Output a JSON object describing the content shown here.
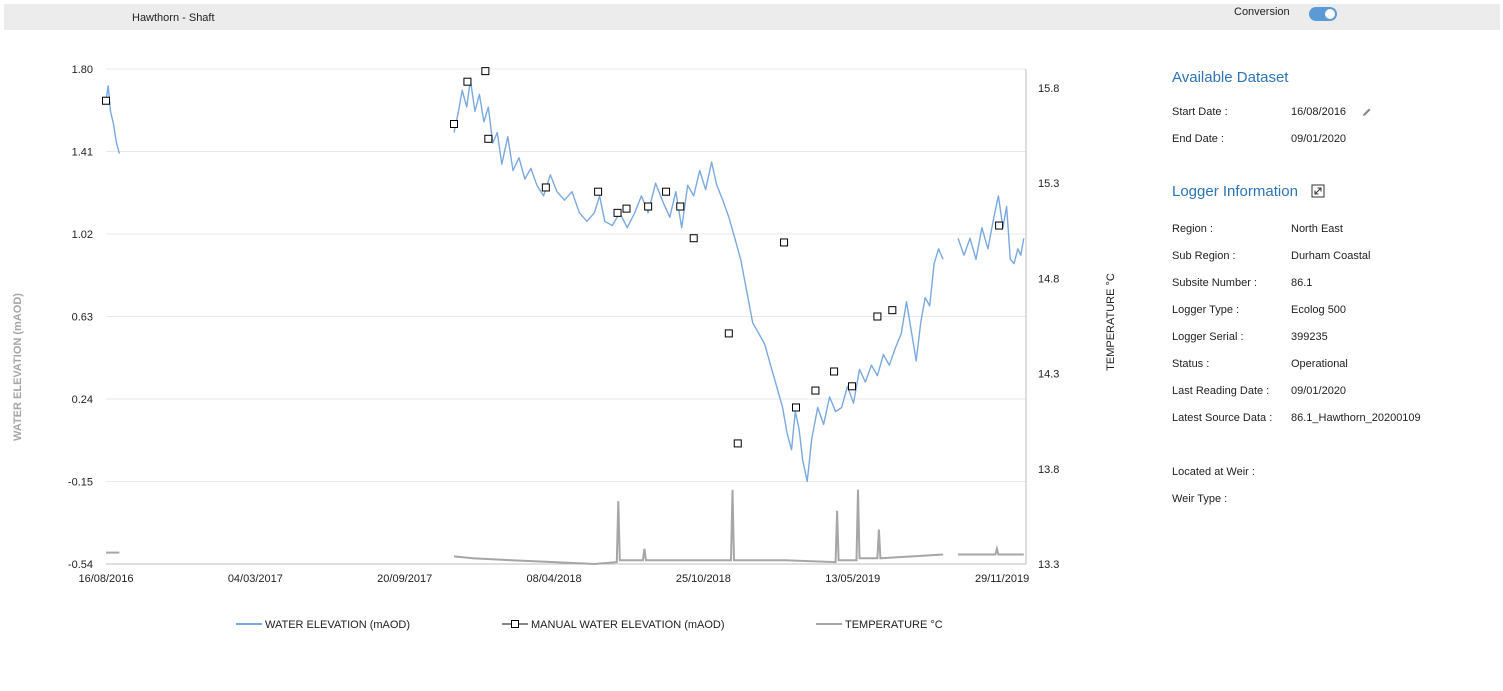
{
  "header": {
    "title": "Hawthorn - Shaft",
    "conversion_label": "Conversion",
    "conversion_on": true
  },
  "panel": {
    "dataset_title": "Available Dataset",
    "dataset_fields": [
      {
        "label": "Start Date :",
        "value": "16/08/2016"
      },
      {
        "label": "End Date :",
        "value": "09/01/2020"
      }
    ],
    "logger_title": "Logger Information",
    "logger_fields": [
      {
        "label": "Region :",
        "value": "North East"
      },
      {
        "label": "Sub Region :",
        "value": "Durham Coastal"
      },
      {
        "label": "Subsite Number :",
        "value": "86.1"
      },
      {
        "label": "Logger Type :",
        "value": "Ecolog 500"
      },
      {
        "label": "Logger Serial :",
        "value": "399235"
      },
      {
        "label": "Status :",
        "value": "Operational"
      },
      {
        "label": "Last Reading Date :",
        "value": "09/01/2020"
      },
      {
        "label": "Latest Source Data :",
        "value": "86.1_Hawthorn_20200109"
      }
    ],
    "weir_fields": [
      {
        "label": "Located at Weir :",
        "value": ""
      },
      {
        "label": "Weir Type :",
        "value": ""
      }
    ],
    "icons": {
      "edit": "pencil-icon",
      "expand": "expand-icon"
    }
  },
  "chart_data": {
    "type": "line",
    "ylabel": "WATER ELEVATION (mAOD)",
    "y2label": "TEMPERATURE °C",
    "x_range": [
      "2016-08-16",
      "2019-12-31"
    ],
    "ylim": [
      -0.54,
      1.8
    ],
    "y2lim": [
      13.3,
      15.9
    ],
    "y_ticks": [
      "1.80",
      "1.41",
      "1.02",
      "0.63",
      "0.24",
      "-0.15",
      "-0.54"
    ],
    "y2_ticks": [
      "15.8",
      "15.3",
      "14.8",
      "14.3",
      "13.8",
      "13.3"
    ],
    "x_ticks": [
      {
        "date": "2016-08-16",
        "label": "16/08/2016"
      },
      {
        "date": "2017-03-04",
        "label": "04/03/2017"
      },
      {
        "date": "2017-09-20",
        "label": "20/09/2017"
      },
      {
        "date": "2018-04-08",
        "label": "08/04/2018"
      },
      {
        "date": "2018-10-25",
        "label": "25/10/2018"
      },
      {
        "date": "2019-05-13",
        "label": "13/05/2019"
      },
      {
        "date": "2019-11-29",
        "label": "29/11/2019"
      }
    ],
    "grid": true,
    "legend": "bottom",
    "colors": {
      "water": "#7aa9e0",
      "manual": "#000000",
      "temp": "#a6a6a6",
      "axis": "#bfbfbf",
      "grid": "#e8e8e8"
    },
    "series": [
      {
        "name": "WATER ELEVATION (mAOD)",
        "kind": "line",
        "segments": [
          [
            [
              "2016-08-16",
              1.65
            ],
            [
              "2016-08-19",
              1.72
            ],
            [
              "2016-08-22",
              1.6
            ],
            [
              "2016-08-26",
              1.54
            ],
            [
              "2016-08-30",
              1.45
            ],
            [
              "2016-09-03",
              1.4
            ]
          ],
          [
            [
              "2017-11-25",
              1.5
            ],
            [
              "2017-12-01",
              1.6
            ],
            [
              "2017-12-06",
              1.7
            ],
            [
              "2017-12-12",
              1.62
            ],
            [
              "2017-12-17",
              1.75
            ],
            [
              "2017-12-23",
              1.6
            ],
            [
              "2017-12-29",
              1.68
            ],
            [
              "2018-01-04",
              1.55
            ],
            [
              "2018-01-10",
              1.62
            ],
            [
              "2018-01-16",
              1.45
            ],
            [
              "2018-01-22",
              1.5
            ],
            [
              "2018-01-28",
              1.35
            ],
            [
              "2018-02-05",
              1.48
            ],
            [
              "2018-02-12",
              1.32
            ],
            [
              "2018-02-20",
              1.38
            ],
            [
              "2018-02-28",
              1.28
            ],
            [
              "2018-03-08",
              1.33
            ],
            [
              "2018-03-16",
              1.25
            ],
            [
              "2018-03-25",
              1.2
            ],
            [
              "2018-04-03",
              1.3
            ],
            [
              "2018-04-12",
              1.22
            ],
            [
              "2018-04-22",
              1.18
            ],
            [
              "2018-05-02",
              1.22
            ],
            [
              "2018-05-12",
              1.12
            ],
            [
              "2018-05-22",
              1.08
            ],
            [
              "2018-06-01",
              1.12
            ],
            [
              "2018-06-08",
              1.2
            ],
            [
              "2018-06-15",
              1.08
            ],
            [
              "2018-06-25",
              1.06
            ],
            [
              "2018-07-05",
              1.12
            ],
            [
              "2018-07-15",
              1.05
            ],
            [
              "2018-07-25",
              1.12
            ],
            [
              "2018-08-03",
              1.2
            ],
            [
              "2018-08-12",
              1.12
            ],
            [
              "2018-08-22",
              1.26
            ],
            [
              "2018-09-01",
              1.17
            ],
            [
              "2018-09-10",
              1.1
            ],
            [
              "2018-09-18",
              1.22
            ],
            [
              "2018-09-26",
              1.05
            ],
            [
              "2018-10-04",
              1.25
            ],
            [
              "2018-10-12",
              1.2
            ],
            [
              "2018-10-20",
              1.32
            ],
            [
              "2018-10-28",
              1.23
            ],
            [
              "2018-11-05",
              1.36
            ],
            [
              "2018-11-12",
              1.25
            ],
            [
              "2018-11-20",
              1.18
            ],
            [
              "2018-11-28",
              1.1
            ],
            [
              "2018-12-06",
              1.0
            ],
            [
              "2018-12-14",
              0.9
            ],
            [
              "2018-12-22",
              0.75
            ],
            [
              "2018-12-30",
              0.6
            ],
            [
              "2019-01-07",
              0.55
            ],
            [
              "2019-01-15",
              0.5
            ],
            [
              "2019-01-23",
              0.4
            ],
            [
              "2019-01-31",
              0.3
            ],
            [
              "2019-02-08",
              0.2
            ],
            [
              "2019-02-14",
              0.08
            ],
            [
              "2019-02-20",
              0.0
            ],
            [
              "2019-02-25",
              0.18
            ],
            [
              "2019-03-02",
              0.1
            ],
            [
              "2019-03-07",
              -0.05
            ],
            [
              "2019-03-13",
              -0.15
            ],
            [
              "2019-03-19",
              0.05
            ],
            [
              "2019-03-27",
              0.2
            ],
            [
              "2019-04-04",
              0.12
            ],
            [
              "2019-04-12",
              0.25
            ],
            [
              "2019-04-20",
              0.18
            ],
            [
              "2019-04-28",
              0.2
            ],
            [
              "2019-05-06",
              0.3
            ],
            [
              "2019-05-14",
              0.22
            ],
            [
              "2019-05-22",
              0.38
            ],
            [
              "2019-05-30",
              0.32
            ],
            [
              "2019-06-07",
              0.4
            ],
            [
              "2019-06-15",
              0.35
            ],
            [
              "2019-06-23",
              0.45
            ],
            [
              "2019-07-01",
              0.4
            ],
            [
              "2019-07-09",
              0.48
            ],
            [
              "2019-07-17",
              0.55
            ],
            [
              "2019-07-24",
              0.7
            ],
            [
              "2019-07-31",
              0.55
            ],
            [
              "2019-08-06",
              0.42
            ],
            [
              "2019-08-12",
              0.6
            ],
            [
              "2019-08-18",
              0.72
            ],
            [
              "2019-08-24",
              0.68
            ],
            [
              "2019-08-30",
              0.88
            ],
            [
              "2019-09-05",
              0.95
            ],
            [
              "2019-09-11",
              0.9
            ]
          ],
          [
            [
              "2019-10-01",
              1.0
            ],
            [
              "2019-10-09",
              0.92
            ],
            [
              "2019-10-17",
              1.0
            ],
            [
              "2019-10-25",
              0.9
            ],
            [
              "2019-11-02",
              1.05
            ],
            [
              "2019-11-10",
              0.95
            ],
            [
              "2019-11-18",
              1.1
            ],
            [
              "2019-11-24",
              1.2
            ],
            [
              "2019-11-30",
              1.05
            ],
            [
              "2019-12-05",
              1.15
            ],
            [
              "2019-12-10",
              0.9
            ],
            [
              "2019-12-15",
              0.88
            ],
            [
              "2019-12-20",
              0.95
            ],
            [
              "2019-12-24",
              0.92
            ],
            [
              "2019-12-28",
              1.0
            ]
          ]
        ]
      },
      {
        "name": "MANUAL WATER ELEVATION (mAOD)",
        "kind": "marker",
        "points": [
          [
            "2016-08-16",
            1.65
          ],
          [
            "2017-11-25",
            1.54
          ],
          [
            "2017-12-13",
            1.74
          ],
          [
            "2018-01-06",
            1.79
          ],
          [
            "2018-01-10",
            1.47
          ],
          [
            "2018-03-28",
            1.24
          ],
          [
            "2018-06-06",
            1.22
          ],
          [
            "2018-07-02",
            1.12
          ],
          [
            "2018-07-14",
            1.14
          ],
          [
            "2018-08-12",
            1.15
          ],
          [
            "2018-09-05",
            1.22
          ],
          [
            "2018-09-24",
            1.15
          ],
          [
            "2018-10-12",
            1.0
          ],
          [
            "2018-11-28",
            0.55
          ],
          [
            "2018-12-10",
            0.03
          ],
          [
            "2019-02-10",
            0.98
          ],
          [
            "2019-02-26",
            0.2
          ],
          [
            "2019-03-24",
            0.28
          ],
          [
            "2019-04-18",
            0.37
          ],
          [
            "2019-05-12",
            0.3
          ],
          [
            "2019-06-15",
            0.63
          ],
          [
            "2019-07-05",
            0.66
          ],
          [
            "2019-11-25",
            1.06
          ]
        ]
      },
      {
        "name": "TEMPERATURE °C",
        "kind": "line",
        "segments": [
          [
            [
              "2016-08-16",
              13.36
            ],
            [
              "2016-09-03",
              13.36
            ]
          ],
          [
            [
              "2017-11-25",
              13.34
            ],
            [
              "2017-12-20",
              13.33
            ],
            [
              "2018-02-10",
              13.32
            ],
            [
              "2018-04-08",
              13.31
            ],
            [
              "2018-06-01",
              13.3
            ],
            [
              "2018-07-01",
              13.31
            ],
            [
              "2018-07-03",
              13.63
            ],
            [
              "2018-07-05",
              13.32
            ],
            [
              "2018-08-05",
              13.32
            ],
            [
              "2018-08-07",
              13.38
            ],
            [
              "2018-08-09",
              13.32
            ],
            [
              "2018-10-01",
              13.32
            ],
            [
              "2018-12-01",
              13.32
            ],
            [
              "2018-12-03",
              13.69
            ],
            [
              "2018-12-05",
              13.32
            ],
            [
              "2019-02-10",
              13.32
            ],
            [
              "2019-04-20",
              13.31
            ],
            [
              "2019-04-22",
              13.58
            ],
            [
              "2019-04-24",
              13.32
            ],
            [
              "2019-05-18",
              13.32
            ],
            [
              "2019-05-20",
              13.69
            ],
            [
              "2019-05-22",
              13.33
            ],
            [
              "2019-06-15",
              13.33
            ],
            [
              "2019-06-17",
              13.48
            ],
            [
              "2019-06-19",
              13.33
            ],
            [
              "2019-08-01",
              13.34
            ],
            [
              "2019-09-11",
              13.35
            ]
          ],
          [
            [
              "2019-10-01",
              13.35
            ],
            [
              "2019-11-20",
              13.35
            ],
            [
              "2019-11-22",
              13.38
            ],
            [
              "2019-11-24",
              13.35
            ],
            [
              "2019-12-28",
              13.35
            ]
          ]
        ]
      }
    ]
  }
}
